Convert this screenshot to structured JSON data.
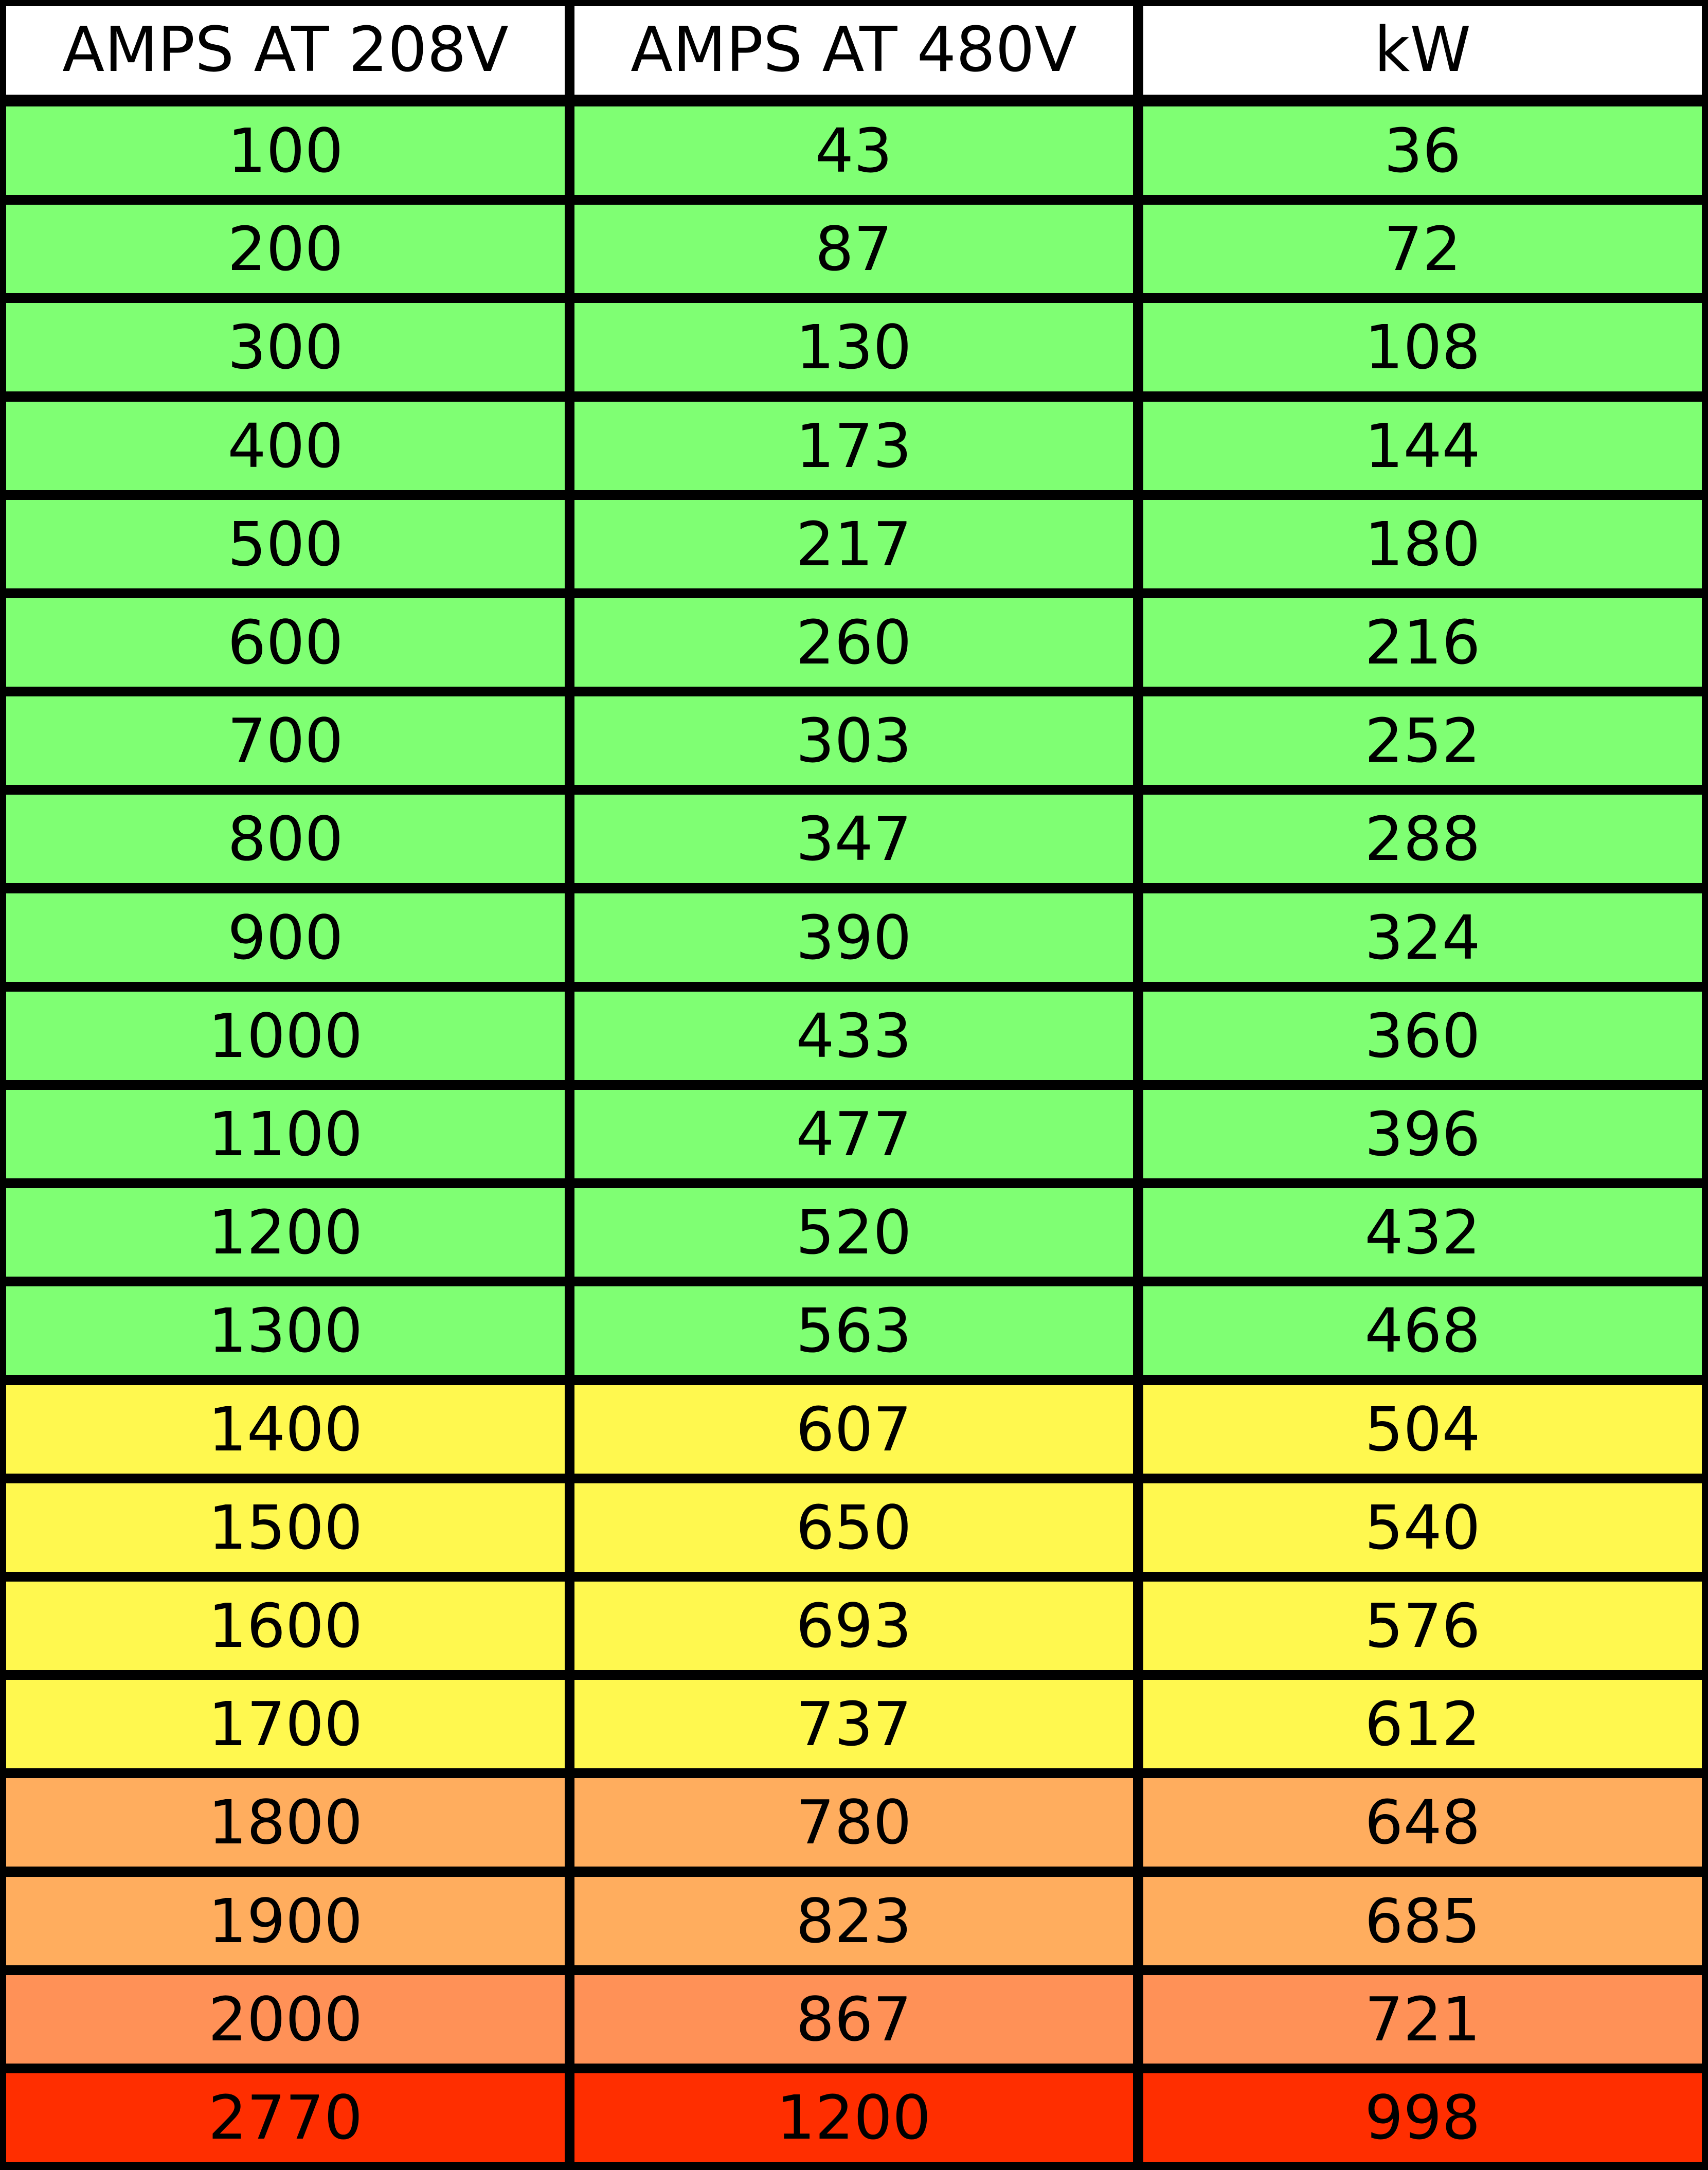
{
  "table": {
    "headers": [
      "AMPS AT 208V",
      "AMPS AT 480V",
      "kW"
    ],
    "header_color": "#FFFFFF",
    "rows": [
      {
        "values": [
          "100",
          "43",
          "36"
        ],
        "color": "#7FFF73"
      },
      {
        "values": [
          "200",
          "87",
          "72"
        ],
        "color": "#7FFF73"
      },
      {
        "values": [
          "300",
          "130",
          "108"
        ],
        "color": "#7FFF73"
      },
      {
        "values": [
          "400",
          "173",
          "144"
        ],
        "color": "#7FFF73"
      },
      {
        "values": [
          "500",
          "217",
          "180"
        ],
        "color": "#7FFF73"
      },
      {
        "values": [
          "600",
          "260",
          "216"
        ],
        "color": "#7FFF73"
      },
      {
        "values": [
          "700",
          "303",
          "252"
        ],
        "color": "#7FFF73"
      },
      {
        "values": [
          "800",
          "347",
          "288"
        ],
        "color": "#7FFF73"
      },
      {
        "values": [
          "900",
          "390",
          "324"
        ],
        "color": "#7FFF73"
      },
      {
        "values": [
          "1000",
          "433",
          "360"
        ],
        "color": "#7FFF73"
      },
      {
        "values": [
          "1100",
          "477",
          "396"
        ],
        "color": "#7FFF73"
      },
      {
        "values": [
          "1200",
          "520",
          "432"
        ],
        "color": "#7FFF73"
      },
      {
        "values": [
          "1300",
          "563",
          "468"
        ],
        "color": "#7FFF73"
      },
      {
        "values": [
          "1400",
          "607",
          "504"
        ],
        "color": "#FFF84F"
      },
      {
        "values": [
          "1500",
          "650",
          "540"
        ],
        "color": "#FFF84F"
      },
      {
        "values": [
          "1600",
          "693",
          "576"
        ],
        "color": "#FFF84F"
      },
      {
        "values": [
          "1700",
          "737",
          "612"
        ],
        "color": "#FFF84F"
      },
      {
        "values": [
          "1800",
          "780",
          "648"
        ],
        "color": "#FFAD5E"
      },
      {
        "values": [
          "1900",
          "823",
          "685"
        ],
        "color": "#FFAD5E"
      },
      {
        "values": [
          "2000",
          "867",
          "721"
        ],
        "color": "#FF9157"
      },
      {
        "values": [
          "2770",
          "1200",
          "998"
        ],
        "color": "#FF2E00"
      }
    ]
  }
}
